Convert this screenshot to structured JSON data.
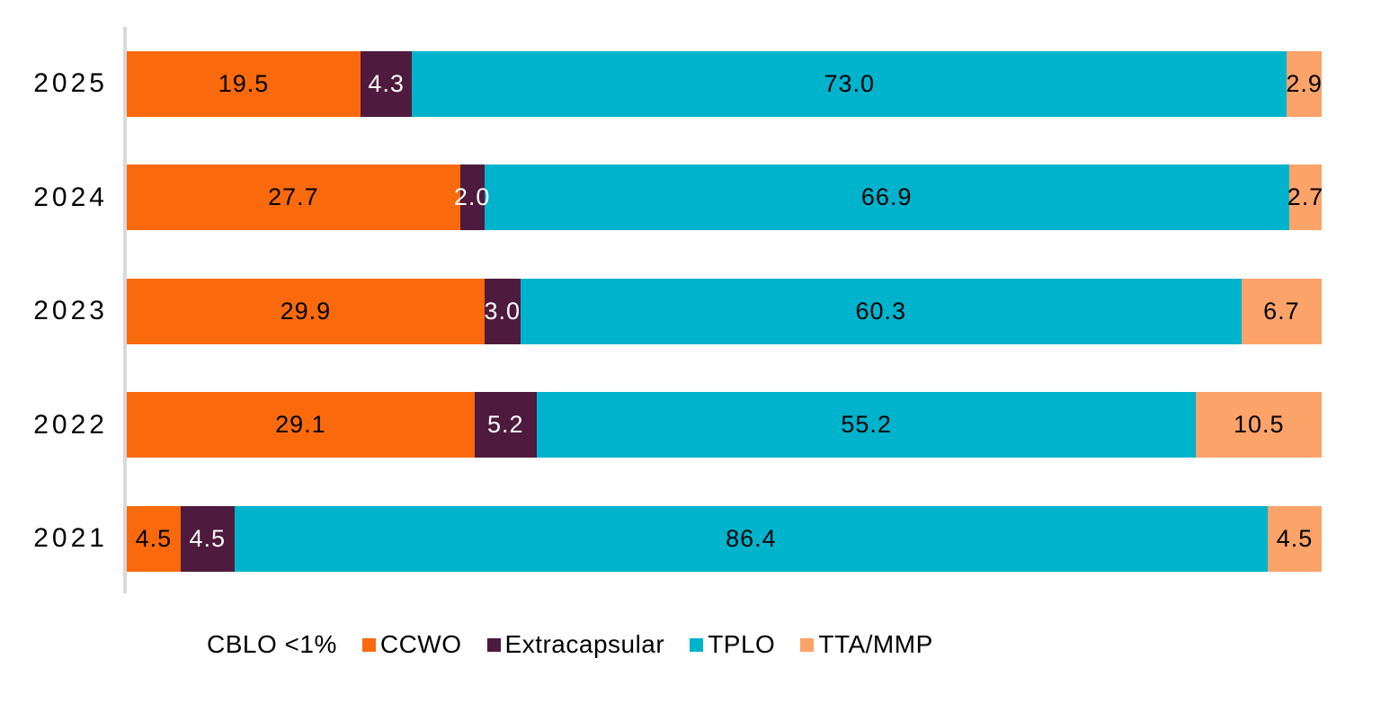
{
  "figure": {
    "background": "#FFFFFF",
    "axis_line_color": "#D9D9D9"
  },
  "chart_data": {
    "type": "bar",
    "orientation": "horizontal",
    "stacked": true,
    "normalized_percent": true,
    "title": "",
    "xlabel": "",
    "ylabel": "",
    "xlim": [
      0,
      100
    ],
    "grid": false,
    "legend_position": "bottom",
    "categories": [
      "2025",
      "2024",
      "2023",
      "2022",
      "2021"
    ],
    "series": [
      {
        "name": "CCWO",
        "color": "#FA6A0D",
        "label_color": "#000000",
        "values": [
          19.5,
          27.7,
          29.9,
          29.1,
          4.5
        ]
      },
      {
        "name": "Extracapsular",
        "color": "#4E1A3D",
        "label_color": "#FFFFFF",
        "values": [
          4.3,
          2.0,
          3.0,
          5.2,
          4.5
        ]
      },
      {
        "name": "TPLO",
        "color": "#00B3CD",
        "label_color": "#000000",
        "values": [
          73.0,
          66.9,
          60.3,
          55.2,
          86.4
        ]
      },
      {
        "name": "TTA/MMP",
        "color": "#FCA369",
        "label_color": "#000000",
        "values": [
          2.9,
          2.7,
          6.7,
          10.5,
          4.5
        ]
      }
    ],
    "annotations": [
      {
        "text": "CBLO <1%"
      }
    ]
  },
  "legend": {
    "items": [
      {
        "label": "CBLO <1%",
        "color": null
      },
      {
        "label": "CCWO",
        "color": "#FA6A0D"
      },
      {
        "label": "Extracapsular",
        "color": "#4E1A3D"
      },
      {
        "label": "TPLO",
        "color": "#00B3CD"
      },
      {
        "label": "TTA/MMP",
        "color": "#FCA369"
      }
    ]
  }
}
